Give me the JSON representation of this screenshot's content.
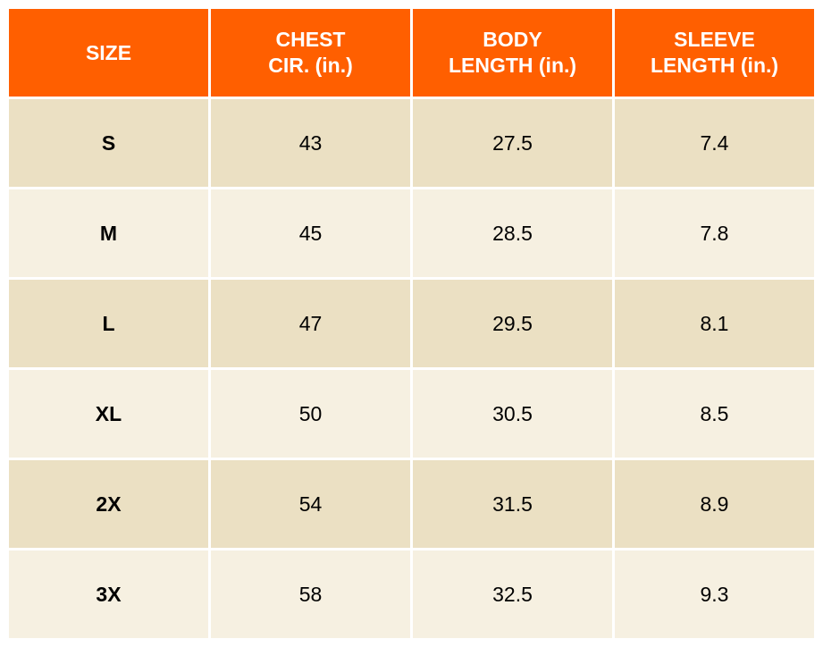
{
  "colors": {
    "header": "#FF5F00",
    "row_dark": "#EBE0C3",
    "row_light": "#F6F0E1"
  },
  "headers": [
    "SIZE",
    "CHEST\nCIR. (in.)",
    "BODY\nLENGTH (in.)",
    "SLEEVE\nLENGTH (in.)"
  ],
  "rows": [
    [
      "S",
      "43",
      "27.5",
      "7.4"
    ],
    [
      "M",
      "45",
      "28.5",
      "7.8"
    ],
    [
      "L",
      "47",
      "29.5",
      "8.1"
    ],
    [
      "XL",
      "50",
      "30.5",
      "8.5"
    ],
    [
      "2X",
      "54",
      "31.5",
      "8.9"
    ],
    [
      "3X",
      "58",
      "32.5",
      "9.3"
    ]
  ]
}
